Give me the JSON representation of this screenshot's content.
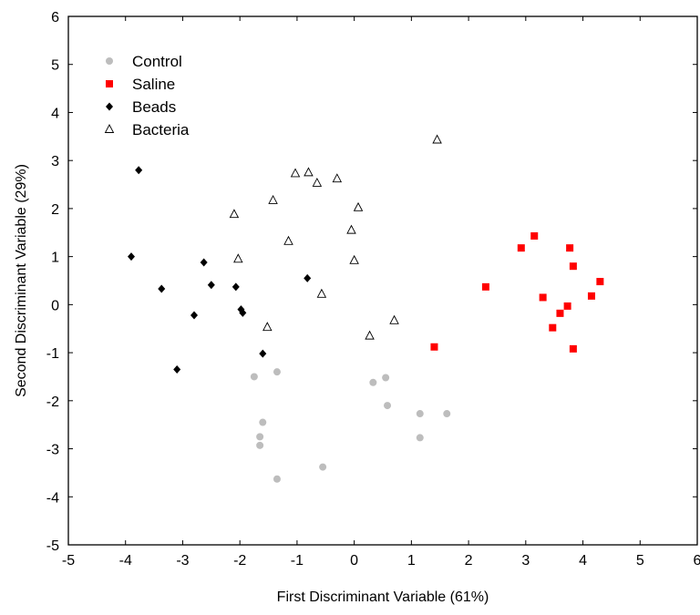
{
  "chart_data": {
    "type": "scatter",
    "title": "",
    "xlabel": "First Discriminant Variable (61%)",
    "ylabel": "Second Discriminant Variable (29%)",
    "xlim": [
      -5,
      6
    ],
    "ylim": [
      -5,
      6
    ],
    "x_ticks": [
      -5,
      -4,
      -3,
      -2,
      -1,
      0,
      1,
      2,
      3,
      4,
      5,
      6
    ],
    "y_ticks": [
      -5,
      -4,
      -3,
      -2,
      -1,
      0,
      1,
      2,
      3,
      4,
      5,
      6
    ],
    "grid": false,
    "legend_position": "top-left",
    "series": [
      {
        "name": "Control",
        "marker": "circle",
        "color": "#bdbdbd",
        "points": [
          {
            "x": -1.75,
            "y": -1.5
          },
          {
            "x": -1.35,
            "y": -1.4
          },
          {
            "x": -1.6,
            "y": -2.45
          },
          {
            "x": -1.65,
            "y": -2.75
          },
          {
            "x": -1.65,
            "y": -2.93
          },
          {
            "x": -1.35,
            "y": -3.63
          },
          {
            "x": -0.55,
            "y": -3.38
          },
          {
            "x": 0.33,
            "y": -1.62
          },
          {
            "x": 0.55,
            "y": -1.52
          },
          {
            "x": 0.58,
            "y": -2.1
          },
          {
            "x": 1.15,
            "y": -2.27
          },
          {
            "x": 1.15,
            "y": -2.77
          },
          {
            "x": 1.62,
            "y": -2.27
          }
        ]
      },
      {
        "name": "Saline",
        "marker": "square",
        "color": "#ff0000",
        "points": [
          {
            "x": 1.4,
            "y": -0.88
          },
          {
            "x": 2.3,
            "y": 0.37
          },
          {
            "x": 2.92,
            "y": 1.18
          },
          {
            "x": 3.15,
            "y": 1.43
          },
          {
            "x": 3.3,
            "y": 0.15
          },
          {
            "x": 3.47,
            "y": -0.48
          },
          {
            "x": 3.6,
            "y": -0.18
          },
          {
            "x": 3.73,
            "y": -0.03
          },
          {
            "x": 3.77,
            "y": 1.18
          },
          {
            "x": 3.83,
            "y": 0.8
          },
          {
            "x": 3.83,
            "y": -0.92
          },
          {
            "x": 4.15,
            "y": 0.18
          },
          {
            "x": 4.3,
            "y": 0.48
          }
        ]
      },
      {
        "name": "Beads",
        "marker": "diamond",
        "color": "#000000",
        "points": [
          {
            "x": -3.77,
            "y": 2.8
          },
          {
            "x": -3.9,
            "y": 1.0
          },
          {
            "x": -3.37,
            "y": 0.33
          },
          {
            "x": -3.1,
            "y": -1.35
          },
          {
            "x": -2.8,
            "y": -0.22
          },
          {
            "x": -2.63,
            "y": 0.88
          },
          {
            "x": -2.5,
            "y": 0.41
          },
          {
            "x": -2.07,
            "y": 0.37
          },
          {
            "x": -1.98,
            "y": -0.1
          },
          {
            "x": -1.95,
            "y": -0.17
          },
          {
            "x": -1.6,
            "y": -1.02
          },
          {
            "x": -0.82,
            "y": 0.55
          }
        ]
      },
      {
        "name": "Bacteria",
        "marker": "triangle-open",
        "color": "#000000",
        "points": [
          {
            "x": -2.1,
            "y": 1.88
          },
          {
            "x": -2.03,
            "y": 0.95
          },
          {
            "x": -1.52,
            "y": -0.47
          },
          {
            "x": -1.42,
            "y": 2.17
          },
          {
            "x": -1.15,
            "y": 1.32
          },
          {
            "x": -1.03,
            "y": 2.73
          },
          {
            "x": -0.8,
            "y": 2.75
          },
          {
            "x": -0.65,
            "y": 2.53
          },
          {
            "x": -0.57,
            "y": 0.22
          },
          {
            "x": -0.3,
            "y": 2.62
          },
          {
            "x": -0.05,
            "y": 1.55
          },
          {
            "x": 0.0,
            "y": 0.92
          },
          {
            "x": 0.07,
            "y": 2.02
          },
          {
            "x": 0.27,
            "y": -0.65
          },
          {
            "x": 0.7,
            "y": -0.33
          },
          {
            "x": 1.45,
            "y": 3.43
          }
        ]
      }
    ]
  }
}
